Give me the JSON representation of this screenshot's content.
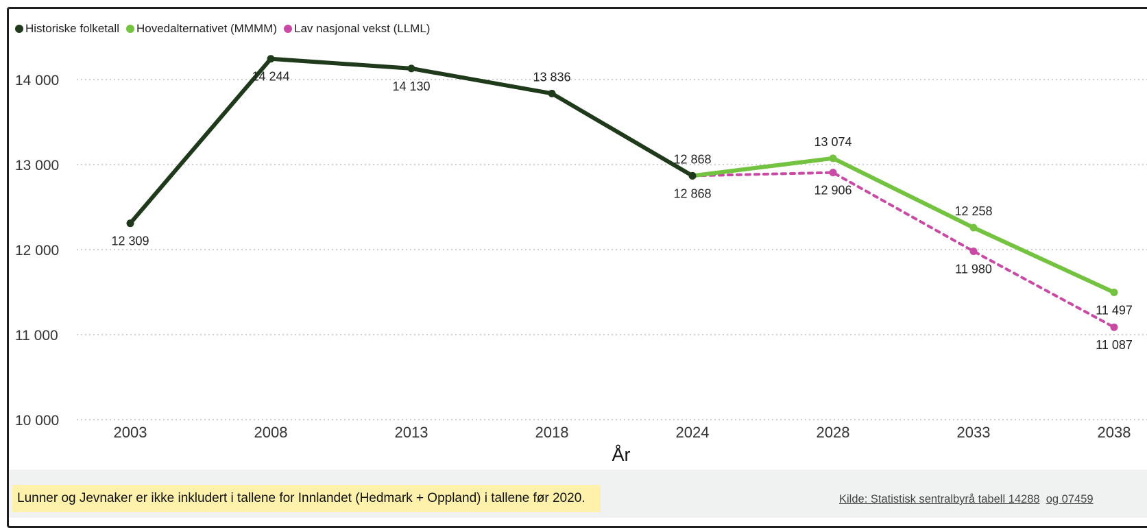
{
  "legend": [
    {
      "label": "Historiske folketall",
      "color": "#1f3a1a"
    },
    {
      "label": "Hovedalternativet (MMMM)",
      "color": "#73c340"
    },
    {
      "label": "Lav nasjonal vekst (LLML)",
      "color": "#c94aa5"
    }
  ],
  "footer": {
    "note": "Lunner og Jevnaker er ikke inkludert i tallene for Innlandet (Hedmark + Oppland) i tallene før 2020.",
    "source_link_1": "Kilde: Statistisk sentralbyrå tabell 14288",
    "source_link_2": "og 07459"
  },
  "chart_data": {
    "type": "line",
    "xlabel": "År",
    "ylabel": "",
    "categories": [
      "2003",
      "2008",
      "2013",
      "2018",
      "2024",
      "2028",
      "2033",
      "2038"
    ],
    "ylim": [
      10000,
      14600
    ],
    "yticks": [
      10000,
      11000,
      12000,
      13000,
      14000
    ],
    "ytick_labels": [
      "10 000",
      "11 000",
      "12 000",
      "13 000",
      "14 000"
    ],
    "grid": "horizontal-dotted",
    "legend_position": "top-left",
    "series": [
      {
        "name": "Historiske folketall",
        "color": "#1f3a1a",
        "dashed": false,
        "x": [
          "2003",
          "2008",
          "2013",
          "2018",
          "2024"
        ],
        "values": [
          12309,
          14244,
          14130,
          13836,
          12868
        ],
        "labels": [
          "12 309",
          "14 244",
          "14 130",
          "13 836",
          "12 868"
        ],
        "label_side": [
          "below",
          "below",
          "below",
          "above",
          "above"
        ]
      },
      {
        "name": "Hovedalternativet (MMMM)",
        "color": "#73c340",
        "dashed": false,
        "x": [
          "2024",
          "2028",
          "2033",
          "2038"
        ],
        "values": [
          12868,
          13074,
          12258,
          11497
        ],
        "labels": [
          "",
          "13 074",
          "12 258",
          "11 497"
        ],
        "label_side": [
          "above",
          "above",
          "above",
          "below"
        ]
      },
      {
        "name": "Lav nasjonal vekst (LLML)",
        "color": "#c94aa5",
        "dashed": true,
        "x": [
          "2024",
          "2028",
          "2033",
          "2038"
        ],
        "values": [
          12868,
          12906,
          11980,
          11087
        ],
        "labels": [
          "12 868",
          "12 906",
          "11 980",
          "11 087"
        ],
        "label_side": [
          "below",
          "below",
          "below",
          "below"
        ]
      }
    ]
  }
}
